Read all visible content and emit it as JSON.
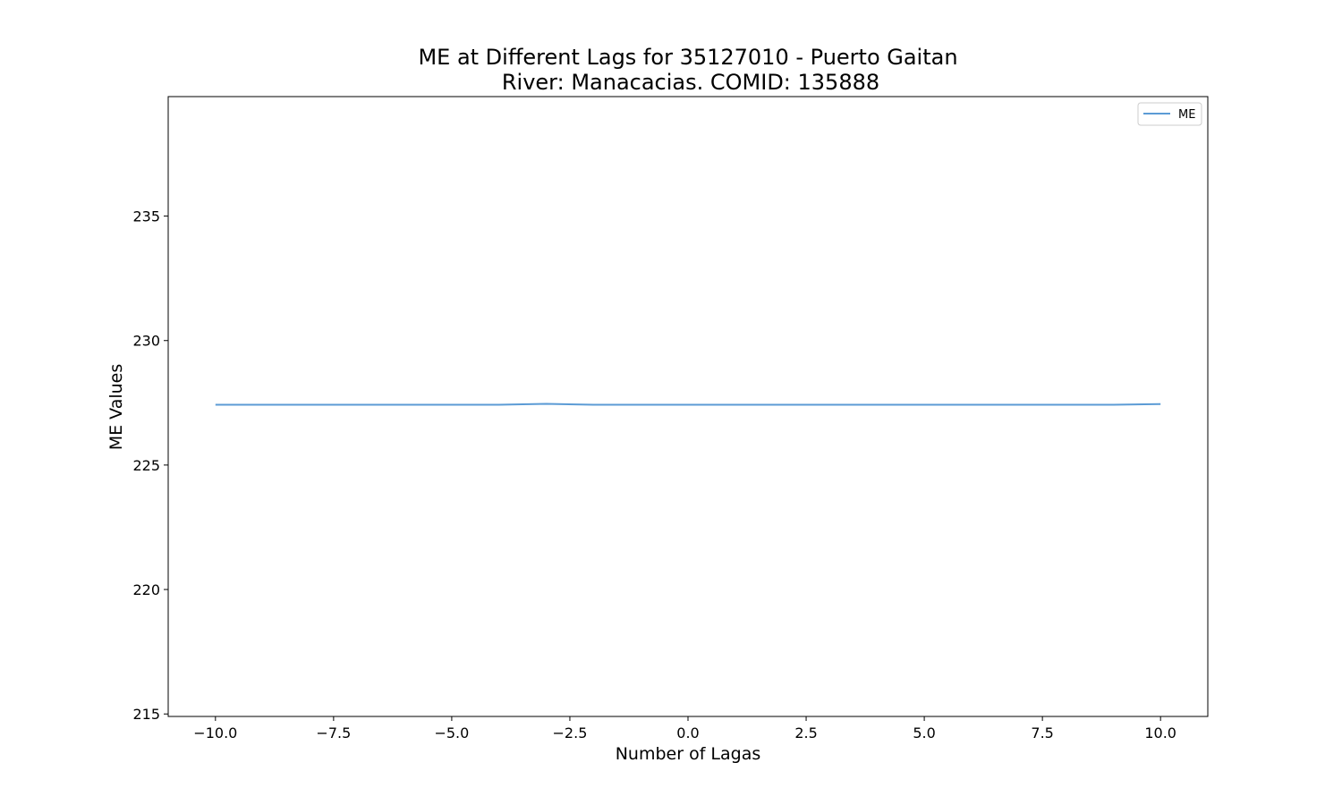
{
  "chart_data": {
    "type": "line",
    "title_line1": "ME at Different Lags for 35127010 - Puerto Gaitan",
    "title_line2": "River: Manacacias. COMID: 135888",
    "xlabel": "Number of Lagas",
    "ylabel": "ME Values",
    "xlim": [
      -11,
      11
    ],
    "ylim": [
      214.9,
      239.8
    ],
    "xticks": [
      -10.0,
      -7.5,
      -5.0,
      -2.5,
      0.0,
      2.5,
      5.0,
      7.5,
      10.0
    ],
    "xtick_labels": [
      "−10.0",
      "−7.5",
      "−5.0",
      "−2.5",
      "0.0",
      "2.5",
      "5.0",
      "7.5",
      "10.0"
    ],
    "yticks": [
      215,
      220,
      225,
      230,
      235
    ],
    "ytick_labels": [
      "215",
      "220",
      "225",
      "230",
      "235"
    ],
    "grid": false,
    "legend_position": "top-right",
    "series": [
      {
        "name": "ME",
        "color": "#5b9bd5",
        "x": [
          -10,
          -9,
          -8,
          -7,
          -6,
          -5,
          -4,
          -3,
          -2,
          -1,
          0,
          1,
          2,
          3,
          4,
          5,
          6,
          7,
          8,
          9,
          10
        ],
        "y": [
          227.42,
          227.42,
          227.42,
          227.42,
          227.42,
          227.42,
          227.42,
          227.46,
          227.42,
          227.42,
          227.42,
          227.42,
          227.42,
          227.42,
          227.42,
          227.42,
          227.42,
          227.42,
          227.42,
          227.42,
          227.45
        ]
      }
    ]
  }
}
